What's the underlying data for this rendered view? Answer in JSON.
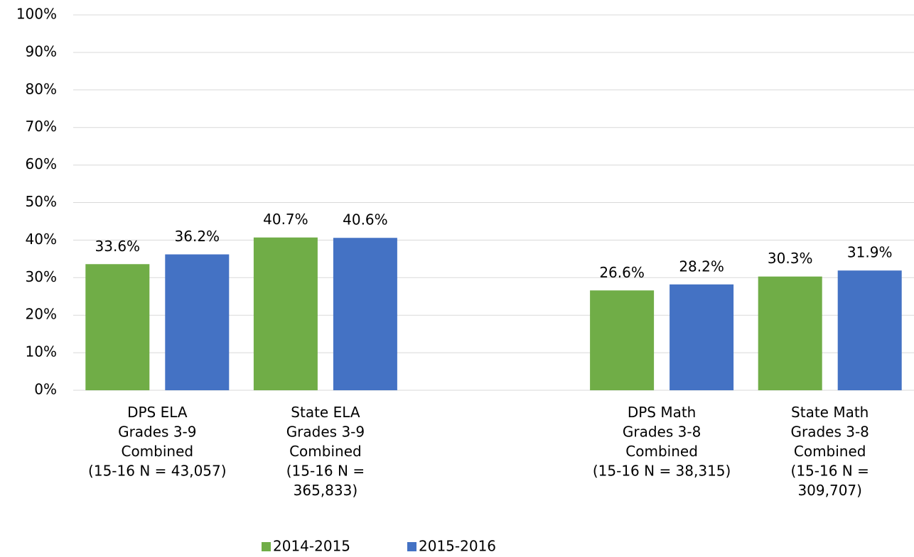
{
  "chart_data": {
    "type": "bar",
    "categories": [
      "DPS ELA\nGrades 3-9\nCombined\n(15-16 N = 43,057)",
      "State ELA\nGrades 3-9\nCombined\n(15-16 N =\n365,833)",
      null,
      "DPS Math\nGrades 3-8\nCombined\n(15-16 N = 38,315)",
      "State Math\nGrades 3-8\nCombined\n(15-16 N =\n309,707)"
    ],
    "series": [
      {
        "name": "2014-2015",
        "color": "#70ad47",
        "values": [
          33.6,
          40.7,
          null,
          26.6,
          30.3
        ],
        "value_labels": [
          "33.6%",
          "40.7%",
          null,
          "26.6%",
          "30.3%"
        ]
      },
      {
        "name": "2015-2016",
        "color": "#4472c4",
        "values": [
          36.2,
          40.6,
          null,
          28.2,
          31.9
        ],
        "value_labels": [
          "36.2%",
          "40.6%",
          null,
          "28.2%",
          "31.9%"
        ]
      }
    ],
    "ylim": [
      0,
      100
    ],
    "yticks": [
      {
        "value": 0,
        "label": "0%"
      },
      {
        "value": 10,
        "label": "10%"
      },
      {
        "value": 20,
        "label": "20%"
      },
      {
        "value": 30,
        "label": "30%"
      },
      {
        "value": 40,
        "label": "40%"
      },
      {
        "value": 50,
        "label": "50%"
      },
      {
        "value": 60,
        "label": "60%"
      },
      {
        "value": 70,
        "label": "70%"
      },
      {
        "value": 80,
        "label": "80%"
      },
      {
        "value": 90,
        "label": "90%"
      },
      {
        "value": 100,
        "label": "100%"
      }
    ],
    "grid": true,
    "legend": "bottom"
  }
}
